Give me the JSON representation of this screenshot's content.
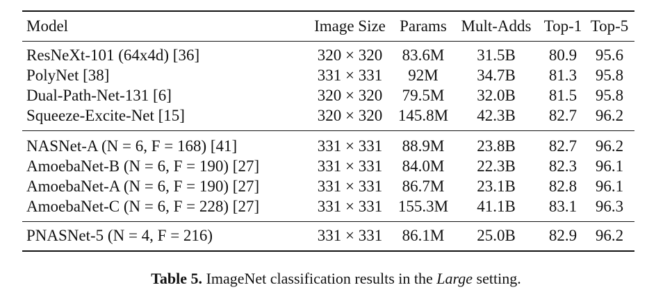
{
  "table": {
    "headers": [
      "Model",
      "Image Size",
      "Params",
      "Mult-Adds",
      "Top-1",
      "Top-5"
    ],
    "groups": [
      [
        {
          "model": "ResNeXt-101 (64x4d) [36]",
          "size": "320 × 320",
          "params": "83.6M",
          "madds": "31.5B",
          "top1": "80.9",
          "top5": "95.6"
        },
        {
          "model": "PolyNet [38]",
          "size": "331 × 331",
          "params": "92M",
          "madds": "34.7B",
          "top1": "81.3",
          "top5": "95.8"
        },
        {
          "model": "Dual-Path-Net-131 [6]",
          "size": "320 × 320",
          "params": "79.5M",
          "madds": "32.0B",
          "top1": "81.5",
          "top5": "95.8"
        },
        {
          "model": "Squeeze-Excite-Net [15]",
          "size": "320 × 320",
          "params": "145.8M",
          "madds": "42.3B",
          "top1": "82.7",
          "top5": "96.2"
        }
      ],
      [
        {
          "model": "NASNet-A (N = 6, F = 168) [41]",
          "size": "331 × 331",
          "params": "88.9M",
          "madds": "23.8B",
          "top1": "82.7",
          "top5": "96.2"
        },
        {
          "model": "AmoebaNet-B (N = 6, F = 190) [27]",
          "size": "331 × 331",
          "params": "84.0M",
          "madds": "22.3B",
          "top1": "82.3",
          "top5": "96.1"
        },
        {
          "model": "AmoebaNet-A (N = 6, F = 190) [27]",
          "size": "331 × 331",
          "params": "86.7M",
          "madds": "23.1B",
          "top1": "82.8",
          "top5": "96.1"
        },
        {
          "model": "AmoebaNet-C (N = 6, F = 228) [27]",
          "size": "331 × 331",
          "params": "155.3M",
          "madds": "41.1B",
          "top1": "83.1",
          "top5": "96.3"
        }
      ],
      [
        {
          "model": "PNASNet-5 (N = 4, F = 216)",
          "size": "331 × 331",
          "params": "86.1M",
          "madds": "25.0B",
          "top1": "82.9",
          "top5": "96.2"
        }
      ]
    ]
  },
  "caption": {
    "label": "Table 5.",
    "text_before": " ImageNet classification results in the ",
    "emphasis": "Large",
    "text_after": " setting."
  }
}
